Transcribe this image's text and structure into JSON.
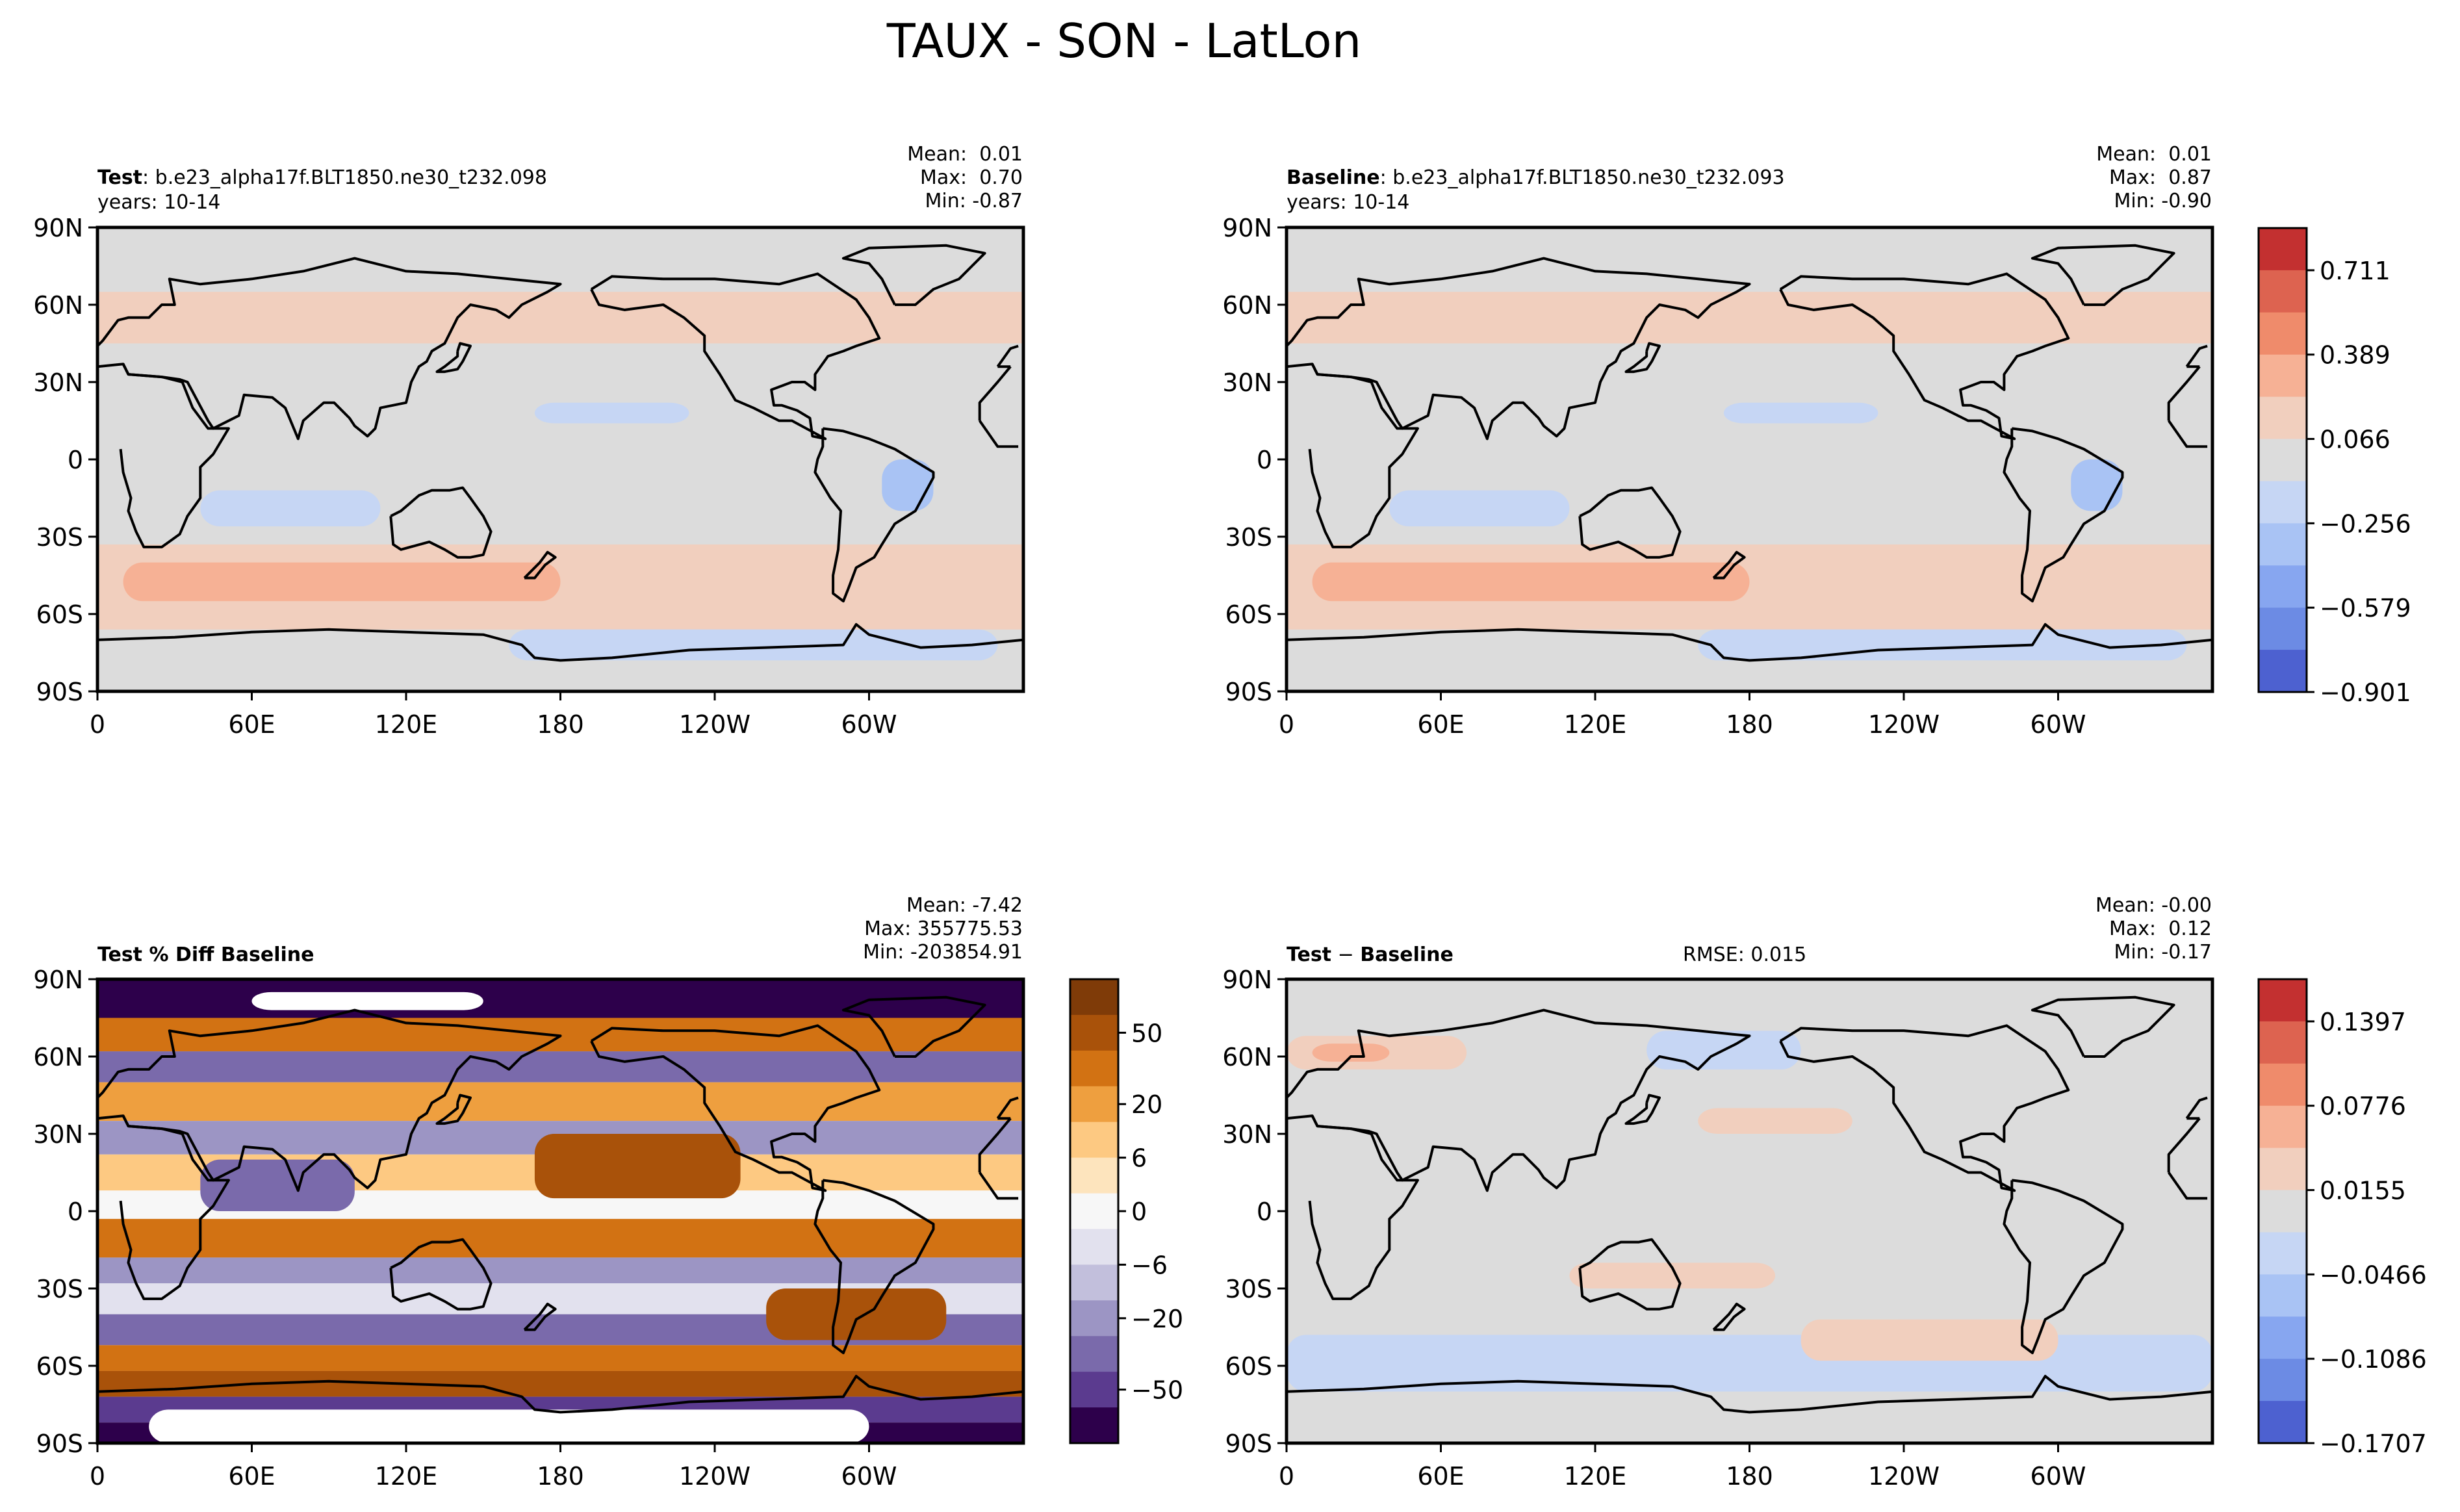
{
  "suptitle": "TAUX - SON - LatLon",
  "panels": {
    "test": {
      "title_bold": "Test",
      "title_rest": ": b.e23_alpha17f.BLT1850.ne30_t232.098",
      "years": "years: 10-14",
      "stats": [
        "Mean:  0.01",
        "Max:  0.70",
        "Min: -0.87"
      ]
    },
    "baseline": {
      "title_bold": "Baseline",
      "title_rest": ": b.e23_alpha17f.BLT1850.ne30_t232.093",
      "years": "years: 10-14",
      "stats": [
        "Mean:  0.01",
        "Max:  0.87",
        "Min: -0.90"
      ]
    },
    "pctdiff": {
      "title_bold": "Test % Diff Baseline",
      "stats": [
        "Mean: -7.42",
        "Max: 355775.53",
        "Min: -203854.91"
      ]
    },
    "diff": {
      "title_bold": "Test",
      "title_sep": " − ",
      "title_bold2": "Baseline",
      "rmse": "RMSE: 0.015",
      "stats": [
        "Mean: -0.00",
        "Max:  0.12",
        "Min: -0.17"
      ]
    }
  },
  "axes": {
    "lon_ticks": [
      "0",
      "60E",
      "120E",
      "180",
      "120W",
      "60W"
    ],
    "lat_ticks": [
      "90N",
      "60N",
      "30N",
      "0",
      "30S",
      "60S",
      "90S"
    ]
  },
  "colorbars": {
    "main": {
      "labels": [
        "0.711",
        "0.389",
        "0.066",
        "−0.256",
        "−0.579",
        "−0.901"
      ],
      "colors": [
        "#c33030",
        "#dd6350",
        "#ef8b6b",
        "#f6b195",
        "#f1cfbe",
        "#dcdcdc",
        "#c6d6f4",
        "#a9c3f4",
        "#87a6f0",
        "#6c8be4",
        "#4d61d0"
      ]
    },
    "pct": {
      "labels": [
        "50",
        "20",
        "6",
        "0",
        "−6",
        "−20",
        "−50"
      ],
      "colors": [
        "#7f3b08",
        "#a9520a",
        "#d27213",
        "#ee9f3f",
        "#fdc982",
        "#fde4bd",
        "#f7f7f7",
        "#e2e1ee",
        "#c2bfdc",
        "#9c95c4",
        "#7a6aab",
        "#5b3b8f",
        "#2d004b"
      ]
    },
    "diff": {
      "labels": [
        "0.1397",
        "0.0776",
        "0.0155",
        "−0.0466",
        "−0.1086",
        "−0.1707"
      ],
      "colors": [
        "#c33030",
        "#dd6350",
        "#ef8b6b",
        "#f6b195",
        "#f1cfbe",
        "#dcdcdc",
        "#c6d6f4",
        "#a9c3f4",
        "#87a6f0",
        "#6c8be4",
        "#4d61d0"
      ]
    }
  },
  "chart_data": [
    {
      "type": "heatmap",
      "title": "Test: b.e23_alpha17f.BLT1850.ne30_t232.098",
      "subtitle": "years: 10-14",
      "xlim": [
        0,
        360
      ],
      "ylim": [
        -90,
        90
      ],
      "stats": {
        "mean": 0.01,
        "max": 0.7,
        "min": -0.87
      },
      "colorbar": {
        "min": -0.901,
        "max": 0.711,
        "levels": 11
      },
      "zonal_bands": [
        {
          "lat_range": [
            45,
            65
          ],
          "value": 0.15
        },
        {
          "lat_range": [
            -65,
            -35
          ],
          "value": 0.25
        },
        {
          "lat_range": [
            -30,
            -10
          ],
          "value": -0.15
        },
        {
          "lat_range": [
            5,
            20
          ],
          "value": -0.1
        }
      ]
    },
    {
      "type": "heatmap",
      "title": "Baseline: b.e23_alpha17f.BLT1850.ne30_t232.093",
      "subtitle": "years: 10-14",
      "xlim": [
        0,
        360
      ],
      "ylim": [
        -90,
        90
      ],
      "stats": {
        "mean": 0.01,
        "max": 0.87,
        "min": -0.9
      },
      "colorbar": {
        "min": -0.901,
        "max": 0.711,
        "levels": 11
      },
      "zonal_bands": [
        {
          "lat_range": [
            45,
            65
          ],
          "value": 0.15
        },
        {
          "lat_range": [
            -65,
            -35
          ],
          "value": 0.25
        },
        {
          "lat_range": [
            -30,
            -10
          ],
          "value": -0.15
        },
        {
          "lat_range": [
            5,
            20
          ],
          "value": -0.1
        }
      ]
    },
    {
      "type": "heatmap",
      "title": "Test % Diff Baseline",
      "xlim": [
        0,
        360
      ],
      "ylim": [
        -90,
        90
      ],
      "stats": {
        "mean": -7.42,
        "max": 355775.53,
        "min": -203854.91
      },
      "colorbar": {
        "levels": [
          -50,
          -20,
          -6,
          0,
          6,
          20,
          50
        ]
      }
    },
    {
      "type": "heatmap",
      "title": "Test − Baseline",
      "rmse": 0.015,
      "xlim": [
        0,
        360
      ],
      "ylim": [
        -90,
        90
      ],
      "stats": {
        "mean": -0.0,
        "max": 0.12,
        "min": -0.17
      },
      "colorbar": {
        "min": -0.1707,
        "max": 0.1397,
        "levels": 11
      }
    }
  ]
}
